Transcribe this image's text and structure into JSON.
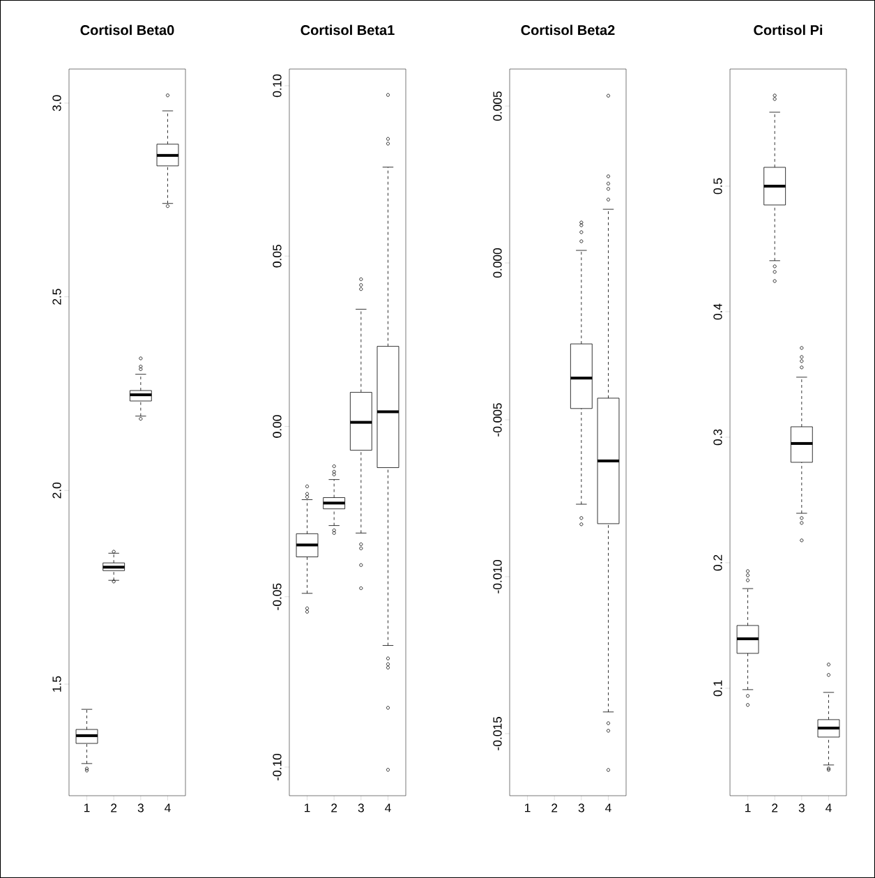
{
  "chart_data": [
    {
      "type": "box",
      "title": "Cortisol Beta0",
      "categories": [
        "1",
        "2",
        "3",
        "4"
      ],
      "ylim": [
        1.212,
        3.088
      ],
      "yticks": [
        {
          "value": 1.5,
          "label": "1.5"
        },
        {
          "value": 2.0,
          "label": "2.0"
        },
        {
          "value": 2.5,
          "label": "2.5"
        },
        {
          "value": 3.0,
          "label": "3.0"
        }
      ],
      "boxes": [
        {
          "low": 1.295,
          "q1": 1.347,
          "median": 1.367,
          "q3": 1.383,
          "high": 1.435,
          "outliers": [
            1.282,
            1.277
          ]
        },
        {
          "low": 1.768,
          "q1": 1.793,
          "median": 1.802,
          "q3": 1.813,
          "high": 1.838,
          "outliers": [
            1.842,
            1.765
          ]
        },
        {
          "low": 2.192,
          "q1": 2.231,
          "median": 2.247,
          "q3": 2.258,
          "high": 2.3,
          "outliers": [
            2.341,
            2.32,
            2.313,
            2.185
          ]
        },
        {
          "low": 2.741,
          "q1": 2.838,
          "median": 2.865,
          "q3": 2.894,
          "high": 2.98,
          "outliers": [
            3.02,
            2.734
          ]
        }
      ]
    },
    {
      "type": "box",
      "title": "Cortisol Beta1",
      "categories": [
        "1",
        "2",
        "3",
        "4"
      ],
      "ylim": [
        -0.1084,
        0.1049
      ],
      "yticks": [
        {
          "value": -0.1,
          "label": "-0.10"
        },
        {
          "value": -0.05,
          "label": "-0.05"
        },
        {
          "value": 0,
          "label": "0.00"
        },
        {
          "value": 0.05,
          "label": "0.05"
        },
        {
          "value": 0.1,
          "label": "0.10"
        }
      ],
      "boxes": [
        {
          "low": -0.049,
          "q1": -0.0383,
          "median": -0.0348,
          "q3": -0.0315,
          "high": -0.0215,
          "outliers": [
            -0.0176,
            -0.0198,
            -0.0207,
            -0.0534,
            -0.0544
          ]
        },
        {
          "low": -0.0291,
          "q1": -0.0242,
          "median": -0.0225,
          "q3": -0.0209,
          "high": -0.0156,
          "outliers": [
            -0.0117,
            -0.0133,
            -0.0141,
            -0.0305,
            -0.0313
          ]
        },
        {
          "low": -0.0313,
          "q1": -0.007,
          "median": 0.0012,
          "q3": 0.01,
          "high": 0.0344,
          "outliers": [
            0.0432,
            0.0415,
            0.0403,
            -0.0346,
            -0.0358,
            -0.0407,
            -0.0475
          ]
        },
        {
          "low": -0.0643,
          "q1": -0.0121,
          "median": 0.0043,
          "q3": 0.0235,
          "high": 0.0761,
          "outliers": [
            0.0973,
            0.0844,
            0.083,
            -0.0681,
            -0.0698,
            -0.0708,
            -0.0826,
            -0.1008
          ]
        }
      ]
    },
    {
      "type": "box",
      "title": "Cortisol Beta2",
      "categories": [
        "1",
        "2",
        "3",
        "4"
      ],
      "ylim": [
        -0.01698,
        0.00618
      ],
      "yticks": [
        {
          "value": -0.015,
          "label": "-0.015"
        },
        {
          "value": -0.01,
          "label": "-0.010"
        },
        {
          "value": -0.005,
          "label": "-0.005"
        },
        {
          "value": 0,
          "label": "0.000"
        },
        {
          "value": 0.005,
          "label": "0.005"
        }
      ],
      "boxes": [
        null,
        null,
        {
          "low": -0.00769,
          "q1": -0.00464,
          "median": -0.00367,
          "q3": -0.00258,
          "high": 0.0004,
          "outliers": [
            0.00129,
            0.0012,
            0.00098,
            0.00069,
            -0.00813,
            -0.00833
          ]
        },
        {
          "low": -0.01431,
          "q1": -0.00831,
          "median": -0.00631,
          "q3": -0.00431,
          "high": 0.00171,
          "outliers": [
            0.00533,
            0.00276,
            0.00253,
            0.00236,
            0.00202,
            -0.01467,
            -0.01491,
            -0.01616
          ]
        }
      ]
    },
    {
      "type": "box",
      "title": "Cortisol Pi",
      "categories": [
        "1",
        "2",
        "3",
        "4"
      ],
      "ylim": [
        0.0144,
        0.5933
      ],
      "yticks": [
        {
          "value": 0.1,
          "label": "0.1"
        },
        {
          "value": 0.2,
          "label": "0.2"
        },
        {
          "value": 0.3,
          "label": "0.3"
        },
        {
          "value": 0.4,
          "label": "0.4"
        },
        {
          "value": 0.5,
          "label": "0.5"
        }
      ],
      "boxes": [
        {
          "low": 0.0989,
          "q1": 0.1278,
          "median": 0.1394,
          "q3": 0.15,
          "high": 0.1794,
          "outliers": [
            0.1933,
            0.19,
            0.186,
            0.0939,
            0.0867
          ]
        },
        {
          "low": 0.4406,
          "q1": 0.485,
          "median": 0.5,
          "q3": 0.515,
          "high": 0.5589,
          "outliers": [
            0.5722,
            0.5694,
            0.4361,
            0.4317,
            0.4244
          ]
        },
        {
          "low": 0.2394,
          "q1": 0.28,
          "median": 0.295,
          "q3": 0.3083,
          "high": 0.3478,
          "outliers": [
            0.3711,
            0.3639,
            0.3606,
            0.3556,
            0.2356,
            0.2317,
            0.2178
          ]
        },
        {
          "low": 0.0389,
          "q1": 0.0611,
          "median": 0.0683,
          "q3": 0.075,
          "high": 0.0967,
          "outliers": [
            0.1189,
            0.1106,
            0.0361,
            0.035
          ]
        }
      ]
    }
  ]
}
